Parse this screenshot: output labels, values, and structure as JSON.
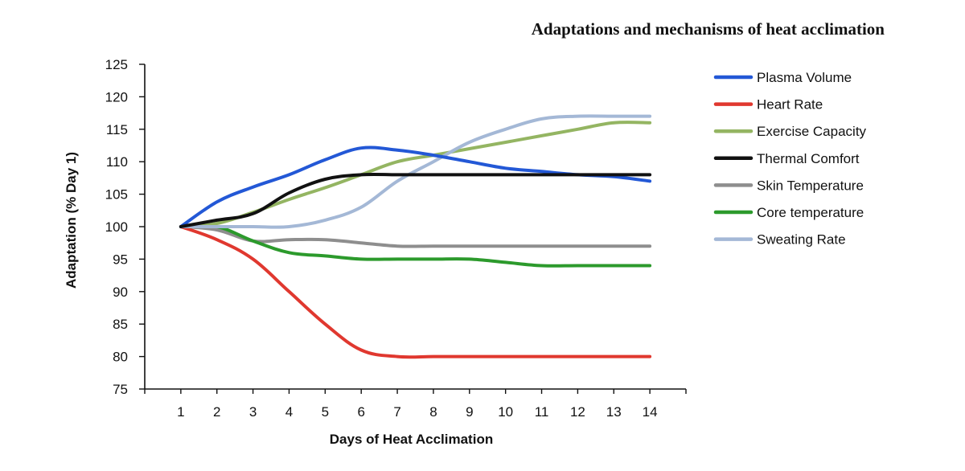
{
  "chart_data": {
    "type": "line",
    "title": "Adaptations and mechanisms of heat acclimation",
    "xlabel": "Days of Heat Acclimation",
    "ylabel": "Adaptation (% Day 1)",
    "x": [
      1,
      2,
      3,
      4,
      5,
      6,
      7,
      8,
      9,
      10,
      11,
      12,
      13,
      14
    ],
    "xlim": [
      0,
      15
    ],
    "ylim": [
      75,
      125
    ],
    "yticks": [
      75,
      80,
      85,
      90,
      95,
      100,
      105,
      110,
      115,
      120,
      125
    ],
    "grid": false,
    "legend_position": "right",
    "series": [
      {
        "name": "Plasma Volume",
        "color": "#2358d6",
        "values": [
          100,
          103.8,
          106.1,
          108,
          110.3,
          112.1,
          111.8,
          111,
          110,
          109,
          108.5,
          108,
          107.7,
          107
        ]
      },
      {
        "name": "Heart Rate",
        "color": "#e0382f",
        "values": [
          100,
          98,
          95,
          90,
          85,
          81,
          80,
          80,
          80,
          80,
          80,
          80,
          80,
          80
        ]
      },
      {
        "name": "Exercise Capacity",
        "color": "#94b562",
        "values": [
          100,
          100.5,
          102.2,
          104.2,
          106,
          108,
          110,
          111,
          112,
          113,
          114,
          115,
          116,
          116
        ]
      },
      {
        "name": "Thermal Comfort",
        "color": "#111111",
        "values": [
          100,
          101,
          102,
          105.2,
          107.3,
          108,
          108,
          108,
          108,
          108,
          108,
          108,
          108,
          108
        ]
      },
      {
        "name": "Skin Temperature",
        "color": "#8e8e8e",
        "values": [
          100,
          99.5,
          97.8,
          98,
          98,
          97.5,
          97,
          97,
          97,
          97,
          97,
          97,
          97,
          97
        ]
      },
      {
        "name": "Core temperature",
        "color": "#2c9a2c",
        "values": [
          100,
          100,
          97.8,
          96,
          95.5,
          95,
          95,
          95,
          95,
          94.5,
          94,
          94,
          94,
          94
        ]
      },
      {
        "name": "Sweating Rate",
        "color": "#a4b8d6",
        "values": [
          100,
          100,
          100,
          100,
          101,
          103,
          107,
          110,
          113,
          115,
          116.6,
          117,
          117,
          117
        ]
      }
    ]
  }
}
